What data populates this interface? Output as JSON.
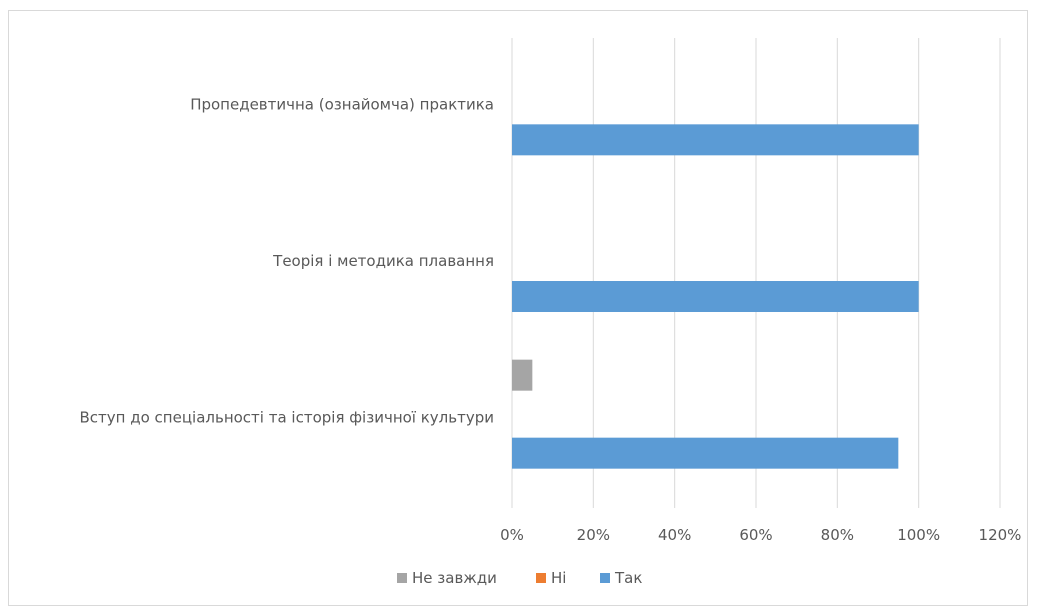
{
  "chart_data": {
    "type": "bar",
    "orientation": "horizontal",
    "title": "",
    "xlabel": "",
    "ylabel": "",
    "categories": [
      "Пропедевтична (ознайомча) практика",
      "Теорія і методика плавання",
      "Вступ до спеціальності та історія фізичної культури"
    ],
    "series": [
      {
        "name": "Так",
        "values": [
          100,
          100,
          95
        ],
        "color": "#5b9bd5"
      },
      {
        "name": "Ні",
        "values": [
          0,
          0,
          0
        ],
        "color": "#ed7d31"
      },
      {
        "name": "Не завжди",
        "values": [
          0,
          0,
          5
        ],
        "color": "#a5a5a5"
      }
    ],
    "xlim": [
      0,
      120
    ],
    "ticks": [
      "0%",
      "20%",
      "40%",
      "60%",
      "80%",
      "100%",
      "120%"
    ],
    "tick_values": [
      0,
      20,
      40,
      60,
      80,
      100,
      120
    ],
    "grid": true,
    "legend_position": "bottom",
    "legend_order": [
      "Не завжди",
      "Ні",
      "Так"
    ]
  }
}
